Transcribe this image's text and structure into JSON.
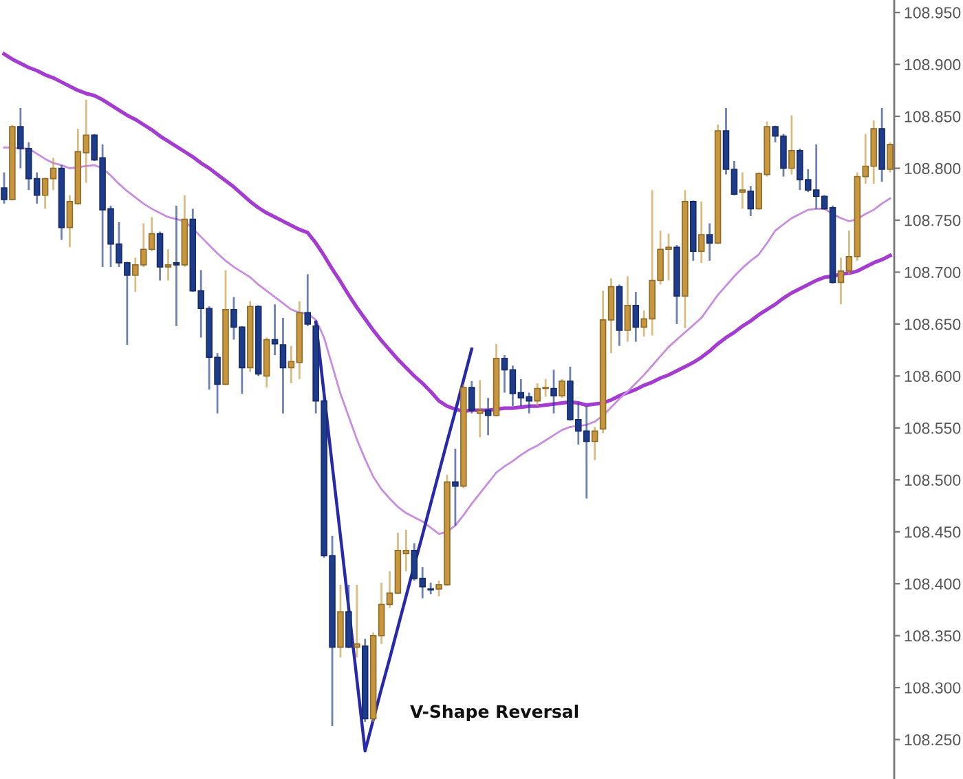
{
  "chart_data": {
    "type": "candlestick",
    "categories": [
      null,
      null,
      null,
      null,
      null,
      null,
      null,
      null,
      null,
      null,
      null,
      null,
      null,
      null,
      null,
      null,
      null,
      null,
      null,
      null,
      null,
      null,
      null,
      null,
      null,
      null,
      null,
      null,
      null,
      null,
      null,
      null,
      null,
      null,
      null,
      null,
      null,
      null,
      null,
      null,
      null,
      null,
      null,
      null,
      null,
      null,
      null,
      null,
      null,
      null,
      null,
      null,
      null,
      null,
      null,
      null,
      null,
      null,
      null,
      null,
      null,
      null,
      null,
      null,
      null,
      null,
      null,
      null,
      null,
      null,
      null,
      null,
      null,
      null,
      null,
      null,
      null,
      null,
      null,
      null,
      null,
      null,
      null,
      null,
      null,
      null,
      null,
      null,
      null,
      null,
      null,
      null,
      null,
      null,
      null,
      null,
      null,
      null,
      null,
      null,
      null,
      null,
      null,
      null,
      null,
      null,
      null,
      null,
      null
    ],
    "ohlc": [
      [
        108.781,
        108.796,
        108.766,
        108.77
      ],
      [
        108.77,
        108.842,
        108.769,
        108.84
      ],
      [
        108.84,
        108.858,
        108.8,
        108.819
      ],
      [
        108.819,
        108.825,
        108.779,
        108.79
      ],
      [
        108.79,
        108.796,
        108.766,
        108.774
      ],
      [
        108.774,
        108.791,
        108.761,
        108.79
      ],
      [
        108.79,
        108.81,
        108.779,
        108.8
      ],
      [
        108.8,
        108.803,
        108.731,
        108.743
      ],
      [
        108.743,
        108.774,
        108.724,
        108.768
      ],
      [
        108.766,
        108.838,
        108.765,
        108.816
      ],
      [
        108.815,
        108.866,
        108.786,
        108.832
      ],
      [
        108.832,
        108.833,
        108.807,
        108.808
      ],
      [
        108.81,
        108.823,
        108.705,
        108.76
      ],
      [
        108.761,
        108.764,
        108.705,
        108.727
      ],
      [
        108.727,
        108.748,
        108.705,
        108.709
      ],
      [
        108.709,
        108.71,
        108.63,
        108.697
      ],
      [
        108.697,
        108.714,
        108.681,
        108.707
      ],
      [
        108.707,
        108.747,
        108.705,
        108.722
      ],
      [
        108.722,
        108.753,
        108.72,
        108.737
      ],
      [
        108.737,
        108.739,
        108.692,
        108.705
      ],
      [
        108.705,
        108.722,
        108.692,
        108.707
      ],
      [
        108.709,
        108.764,
        108.648,
        108.707
      ],
      [
        108.707,
        108.774,
        108.705,
        108.751
      ],
      [
        108.751,
        108.761,
        108.681,
        108.682
      ],
      [
        108.682,
        108.702,
        108.637,
        108.665
      ],
      [
        108.665,
        108.667,
        108.587,
        108.618
      ],
      [
        108.618,
        108.622,
        108.564,
        108.592
      ],
      [
        108.592,
        108.702,
        108.591,
        108.664
      ],
      [
        108.664,
        108.676,
        108.635,
        108.647
      ],
      [
        108.647,
        108.648,
        108.583,
        108.608
      ],
      [
        108.608,
        108.672,
        108.604,
        108.667
      ],
      [
        108.667,
        108.668,
        108.6,
        108.602
      ],
      [
        108.6,
        108.637,
        108.589,
        108.635
      ],
      [
        108.635,
        108.669,
        108.62,
        108.631
      ],
      [
        108.63,
        108.656,
        108.564,
        108.608
      ],
      [
        108.608,
        108.629,
        108.593,
        108.614
      ],
      [
        108.613,
        108.672,
        108.597,
        108.661
      ],
      [
        108.661,
        108.698,
        108.648,
        108.65
      ],
      [
        108.648,
        108.652,
        108.564,
        108.576
      ],
      [
        108.576,
        108.589,
        108.425,
        108.427
      ],
      [
        108.427,
        108.446,
        108.263,
        108.339
      ],
      [
        108.339,
        108.399,
        108.329,
        108.373
      ],
      [
        108.373,
        108.399,
        108.338,
        108.339
      ],
      [
        108.339,
        108.399,
        108.329,
        108.342
      ],
      [
        108.34,
        108.347,
        108.267,
        108.27
      ],
      [
        108.27,
        108.353,
        108.267,
        108.35
      ],
      [
        108.35,
        108.401,
        108.342,
        108.38
      ],
      [
        108.38,
        108.412,
        108.377,
        108.391
      ],
      [
        108.391,
        108.449,
        108.39,
        108.432
      ],
      [
        108.429,
        108.452,
        108.412,
        108.432
      ],
      [
        108.432,
        108.439,
        108.403,
        108.405
      ],
      [
        108.405,
        108.416,
        108.386,
        108.397
      ],
      [
        108.395,
        108.401,
        108.39,
        108.394
      ],
      [
        108.395,
        108.403,
        108.388,
        108.399
      ],
      [
        108.399,
        108.505,
        108.398,
        108.498
      ],
      [
        108.498,
        108.53,
        108.456,
        108.494
      ],
      [
        108.494,
        108.592,
        108.492,
        108.589
      ],
      [
        108.589,
        108.595,
        108.564,
        108.567
      ],
      [
        108.564,
        108.596,
        108.541,
        108.567
      ],
      [
        108.567,
        108.579,
        108.543,
        108.562
      ],
      [
        108.562,
        108.631,
        108.561,
        108.617
      ],
      [
        108.617,
        108.62,
        108.584,
        108.606
      ],
      [
        108.606,
        108.61,
        108.571,
        108.583
      ],
      [
        108.584,
        108.597,
        108.571,
        108.579
      ],
      [
        108.58,
        108.584,
        108.564,
        108.576
      ],
      [
        108.576,
        108.593,
        108.571,
        108.588
      ],
      [
        108.588,
        108.597,
        108.58,
        108.589
      ],
      [
        108.588,
        108.606,
        108.564,
        108.581
      ],
      [
        108.581,
        108.597,
        108.579,
        108.595
      ],
      [
        108.595,
        108.609,
        108.557,
        108.558
      ],
      [
        108.558,
        108.574,
        108.534,
        108.547
      ],
      [
        108.547,
        108.571,
        108.482,
        108.537
      ],
      [
        108.537,
        108.551,
        108.519,
        108.547
      ],
      [
        108.549,
        108.682,
        108.545,
        108.654
      ],
      [
        108.654,
        108.694,
        108.622,
        108.686
      ],
      [
        108.686,
        108.688,
        108.629,
        108.644
      ],
      [
        108.644,
        108.696,
        108.633,
        108.668
      ],
      [
        108.668,
        108.681,
        108.633,
        108.647
      ],
      [
        108.647,
        108.663,
        108.638,
        108.655
      ],
      [
        108.655,
        108.779,
        108.639,
        108.692
      ],
      [
        108.692,
        108.74,
        108.688,
        108.722
      ],
      [
        108.722,
        108.737,
        108.692,
        108.724
      ],
      [
        108.724,
        108.726,
        108.65,
        108.677
      ],
      [
        108.677,
        108.779,
        108.646,
        108.768
      ],
      [
        108.768,
        108.769,
        108.711,
        108.72
      ],
      [
        108.72,
        108.768,
        108.709,
        108.736
      ],
      [
        108.736,
        108.747,
        108.711,
        108.728
      ],
      [
        108.728,
        108.842,
        108.727,
        108.836
      ],
      [
        108.836,
        108.858,
        108.794,
        108.799
      ],
      [
        108.799,
        108.807,
        108.774,
        108.775
      ],
      [
        108.777,
        108.796,
        108.761,
        108.779
      ],
      [
        108.778,
        108.783,
        108.754,
        108.761
      ],
      [
        108.761,
        108.796,
        108.76,
        108.795
      ],
      [
        108.794,
        108.845,
        108.792,
        108.84
      ],
      [
        108.84,
        108.841,
        108.825,
        108.831
      ],
      [
        108.831,
        108.833,
        108.792,
        108.8
      ],
      [
        108.8,
        108.851,
        108.794,
        108.817
      ],
      [
        108.817,
        108.819,
        108.779,
        108.789
      ],
      [
        108.789,
        108.799,
        108.777,
        108.779
      ],
      [
        108.779,
        108.823,
        108.761,
        108.773
      ],
      [
        108.773,
        108.774,
        108.76,
        108.761
      ],
      [
        108.762,
        108.764,
        108.689,
        108.69
      ],
      [
        108.69,
        108.714,
        108.669,
        108.701
      ],
      [
        108.701,
        108.74,
        108.698,
        108.715
      ],
      [
        108.715,
        108.796,
        108.711,
        108.792
      ],
      [
        108.792,
        108.833,
        108.785,
        108.802
      ],
      [
        108.802,
        108.846,
        108.785,
        108.838
      ],
      [
        108.838,
        108.858,
        108.787,
        108.799
      ],
      [
        108.799,
        108.825,
        108.796,
        108.823
      ]
    ],
    "colors": [
      "#1e3c8c",
      "#c8963c",
      "#1e3c8c",
      "#1e3c8c",
      "#1e3c8c",
      "#c8963c",
      "#c8963c",
      "#1e3c8c",
      "#c8963c",
      "#c8963c",
      "#c8963c",
      "#1e3c8c",
      "#1e3c8c",
      "#1e3c8c",
      "#1e3c8c",
      "#1e3c8c",
      "#c8963c",
      "#c8963c",
      "#c8963c",
      "#1e3c8c",
      "#c8963c",
      "#1e3c8c",
      "#c8963c",
      "#1e3c8c",
      "#1e3c8c",
      "#1e3c8c",
      "#1e3c8c",
      "#c8963c",
      "#1e3c8c",
      "#1e3c8c",
      "#c8963c",
      "#1e3c8c",
      "#c8963c",
      "#1e3c8c",
      "#1e3c8c",
      "#c8963c",
      "#c8963c",
      "#1e3c8c",
      "#1e3c8c",
      "#1e3c8c",
      "#1e3c8c",
      "#c8963c",
      "#1e3c8c",
      "#c8963c",
      "#1e3c8c",
      "#c8963c",
      "#c8963c",
      "#c8963c",
      "#c8963c",
      "#c8963c",
      "#1e3c8c",
      "#1e3c8c",
      "#1e3c8c",
      "#c8963c",
      "#c8963c",
      "#1e3c8c",
      "#c8963c",
      "#1e3c8c",
      "#c8963c",
      "#1e3c8c",
      "#c8963c",
      "#1e3c8c",
      "#1e3c8c",
      "#1e3c8c",
      "#1e3c8c",
      "#c8963c",
      "#c8963c",
      "#1e3c8c",
      "#c8963c",
      "#1e3c8c",
      "#1e3c8c",
      "#1e3c8c",
      "#c8963c",
      "#c8963c",
      "#c8963c",
      "#1e3c8c",
      "#c8963c",
      "#1e3c8c",
      "#c8963c",
      "#c8963c",
      "#c8963c",
      "#c8963c",
      "#1e3c8c",
      "#c8963c",
      "#1e3c8c",
      "#c8963c",
      "#1e3c8c",
      "#c8963c",
      "#1e3c8c",
      "#1e3c8c",
      "#c8963c",
      "#1e3c8c",
      "#c8963c",
      "#c8963c",
      "#1e3c8c",
      "#1e3c8c",
      "#c8963c",
      "#1e3c8c",
      "#1e3c8c",
      "#1e3c8c",
      "#1e3c8c",
      "#1e3c8c",
      "#c8963c",
      "#c8963c",
      "#c8963c",
      "#c8963c",
      "#c8963c",
      "#1e3c8c",
      "#c8963c"
    ],
    "series": [
      {
        "type": "line",
        "color": "#a53cd2",
        "values": [
          108.91,
          108.905,
          108.901,
          108.897,
          108.894,
          108.89,
          108.887,
          108.883,
          108.879,
          108.875,
          108.872,
          108.87,
          108.866,
          108.861,
          108.856,
          108.851,
          108.847,
          108.842,
          108.837,
          108.831,
          108.826,
          108.821,
          108.816,
          108.811,
          108.805,
          108.8,
          108.794,
          108.788,
          108.782,
          108.775,
          108.768,
          108.762,
          108.757,
          108.753,
          108.749,
          108.745,
          108.741,
          108.738,
          108.728,
          108.716,
          108.703,
          108.691,
          108.678,
          108.666,
          108.655,
          108.644,
          108.634,
          108.625,
          108.616,
          108.608,
          108.6,
          108.593,
          108.585,
          108.576,
          108.571,
          108.568,
          108.566,
          108.567,
          108.567,
          108.567,
          108.568,
          108.569,
          108.569,
          108.57,
          108.571,
          108.571,
          108.572,
          108.573,
          108.574,
          108.575,
          108.574,
          108.572,
          108.573,
          108.574,
          108.577,
          108.581,
          108.584,
          108.587,
          108.591,
          108.594,
          108.598,
          108.601,
          108.605,
          108.609,
          108.613,
          108.618,
          108.624,
          108.631,
          108.637,
          108.642,
          108.648,
          108.653,
          108.659,
          108.664,
          108.669,
          108.675,
          108.68,
          108.684,
          108.688,
          108.692,
          108.695,
          108.696,
          108.698,
          108.699,
          108.701,
          108.705,
          108.709,
          108.712,
          108.716
        ]
      },
      {
        "type": "line",
        "color": "#c88ce1",
        "values": [
          108.82,
          108.82,
          108.819,
          108.819,
          108.814,
          108.809,
          108.805,
          108.803,
          108.8,
          108.801,
          108.802,
          108.803,
          108.8,
          108.793,
          108.785,
          108.778,
          108.772,
          108.766,
          108.761,
          108.757,
          108.753,
          108.751,
          108.749,
          108.742,
          108.734,
          108.726,
          108.718,
          108.711,
          108.705,
          108.7,
          108.695,
          108.688,
          108.682,
          108.676,
          108.67,
          108.664,
          108.661,
          108.66,
          108.654,
          108.637,
          108.61,
          108.583,
          108.561,
          108.539,
          108.52,
          108.503,
          108.491,
          108.482,
          108.474,
          108.468,
          108.464,
          108.46,
          108.454,
          108.448,
          108.45,
          108.456,
          108.466,
          108.477,
          108.487,
          108.497,
          108.507,
          108.513,
          108.518,
          108.524,
          108.529,
          108.533,
          108.538,
          108.543,
          108.548,
          108.551,
          108.552,
          108.553,
          108.556,
          108.562,
          108.57,
          108.578,
          108.585,
          108.593,
          108.601,
          108.61,
          108.619,
          108.628,
          108.635,
          108.642,
          108.649,
          108.656,
          108.667,
          108.678,
          108.687,
          108.696,
          108.704,
          108.711,
          108.717,
          108.728,
          108.74,
          108.746,
          108.752,
          108.756,
          108.76,
          108.761,
          108.761,
          108.756,
          108.752,
          108.749,
          108.751,
          108.756,
          108.76,
          108.766,
          108.771
        ]
      },
      {
        "type": "line",
        "color": "#2828aa",
        "values": [
          null,
          null,
          null,
          null,
          null,
          null,
          null,
          null,
          null,
          null,
          null,
          null,
          null,
          null,
          null,
          null,
          null,
          null,
          null,
          null,
          null,
          null,
          null,
          null,
          null,
          null,
          null,
          null,
          null,
          null,
          null,
          null,
          null,
          null,
          null,
          null,
          null,
          null,
          108.652,
          108.583,
          108.514,
          108.446,
          108.377,
          108.308,
          108.239,
          108.269,
          108.299,
          108.328,
          108.358,
          108.388,
          108.418,
          108.447,
          108.477,
          108.507,
          108.537,
          108.566,
          108.596,
          108.626,
          null,
          null,
          null,
          null,
          null,
          null,
          null,
          null,
          null,
          null,
          null,
          null,
          null,
          null,
          null,
          null,
          null,
          null,
          null,
          null,
          null,
          null,
          null,
          null,
          null,
          null,
          null,
          null,
          null,
          null,
          null,
          null,
          null,
          null,
          null,
          null,
          null,
          null,
          null,
          null,
          null,
          null,
          null,
          null,
          null,
          null,
          null,
          null,
          null,
          null,
          null
        ]
      }
    ],
    "ylim": [
      108.212,
      108.962
    ],
    "yticks": [
      {
        "value": 108.25,
        "label": "108.250"
      },
      {
        "value": 108.3,
        "label": "108.300"
      },
      {
        "value": 108.35,
        "label": "108.350"
      },
      {
        "value": 108.4,
        "label": "108.400"
      },
      {
        "value": 108.45,
        "label": "108.450"
      },
      {
        "value": 108.5,
        "label": "108.500"
      },
      {
        "value": 108.55,
        "label": "108.550"
      },
      {
        "value": 108.6,
        "label": "108.600"
      },
      {
        "value": 108.65,
        "label": "108.650"
      },
      {
        "value": 108.7,
        "label": "108.700"
      },
      {
        "value": 108.75,
        "label": "108.750"
      },
      {
        "value": 108.8,
        "label": "108.800"
      },
      {
        "value": 108.85,
        "label": "108.850"
      },
      {
        "value": 108.9,
        "label": "108.900"
      },
      {
        "value": 108.95,
        "label": "108.950"
      }
    ],
    "tick_labels": "y",
    "annotations": [
      "V-Shape Reversal"
    ]
  }
}
